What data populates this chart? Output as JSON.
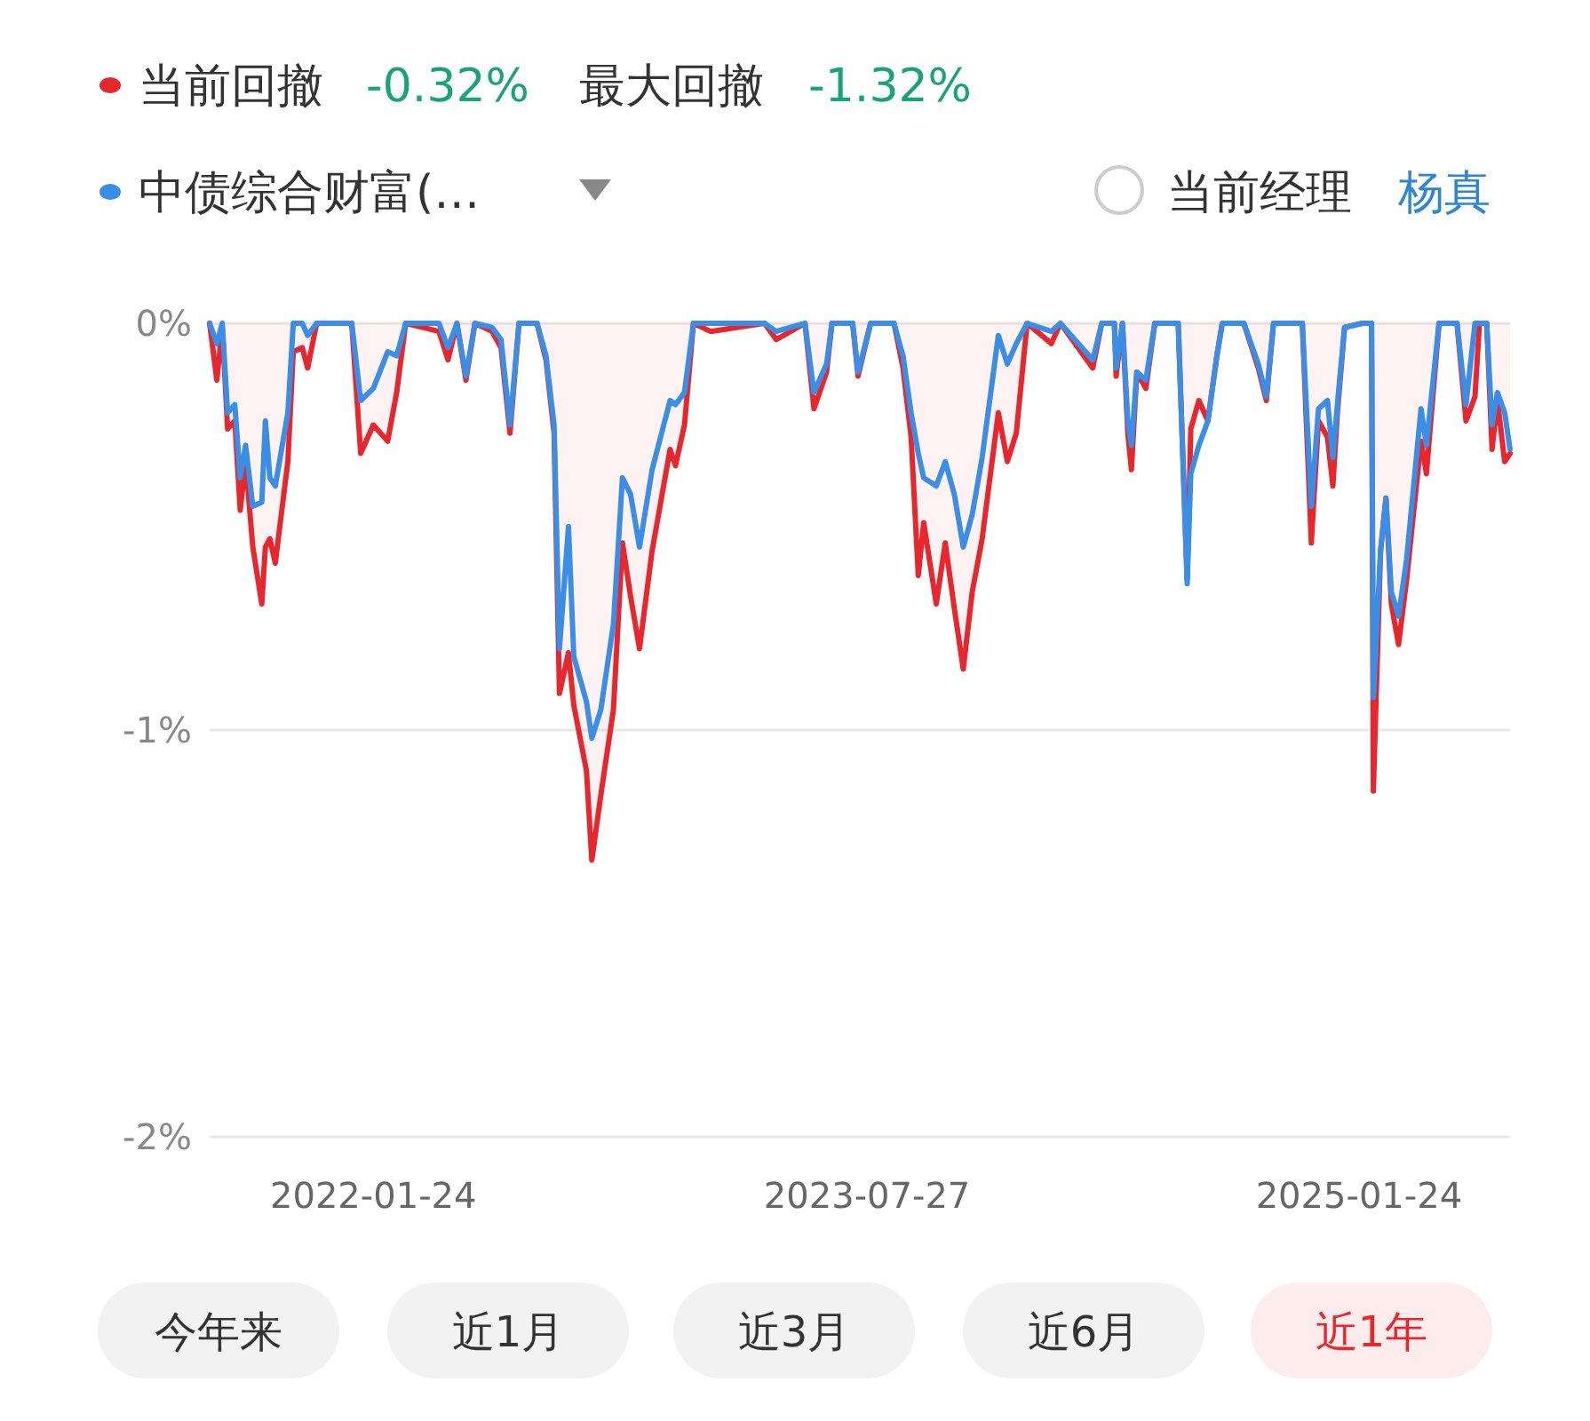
{
  "chart_data": {
    "type": "line",
    "x": [
      "2021-07-26",
      "2021-08-03",
      "2021-08-09",
      "2021-08-15",
      "2021-08-23",
      "2021-08-29",
      "2021-09-04",
      "2021-09-12",
      "2021-09-22",
      "2021-09-26",
      "2021-10-01",
      "2021-10-07",
      "2021-10-21",
      "2021-10-27",
      "2021-11-06",
      "2021-11-12",
      "2021-11-22",
      "2021-12-31",
      "2022-01-10",
      "2022-01-24",
      "2022-02-09",
      "2022-02-19",
      "2022-03-01",
      "2022-04-07",
      "2022-04-17",
      "2022-04-27",
      "2022-05-07",
      "2022-05-17",
      "2022-06-05",
      "2022-06-15",
      "2022-06-25",
      "2022-07-05",
      "2022-07-25",
      "2022-08-04",
      "2022-08-13",
      "2022-08-19",
      "2022-08-29",
      "2022-09-04",
      "2022-09-18",
      "2022-09-24",
      "2022-10-04",
      "2022-10-18",
      "2022-10-28",
      "2022-11-06",
      "2022-11-16",
      "2022-11-30",
      "2022-12-20",
      "2022-12-26",
      "2023-01-05",
      "2023-01-15",
      "2023-02-03",
      "2023-04-04",
      "2023-04-17",
      "2023-05-19",
      "2023-05-29",
      "2023-06-12",
      "2023-06-18",
      "2023-07-11",
      "2023-07-17",
      "2023-07-31",
      "2023-08-26",
      "2023-09-05",
      "2023-09-14",
      "2023-09-22",
      "2023-09-28",
      "2023-10-12",
      "2023-10-22",
      "2023-11-01",
      "2023-11-11",
      "2023-11-21",
      "2023-12-02",
      "2023-12-20",
      "2023-12-30",
      "2024-01-09",
      "2024-01-21",
      "2024-02-17",
      "2024-02-27",
      "2024-04-03",
      "2024-04-13",
      "2024-04-27",
      "2024-04-29",
      "2024-05-06",
      "2024-05-12",
      "2024-05-16",
      "2024-05-22",
      "2024-06-01",
      "2024-06-11",
      "2024-07-07",
      "2024-07-17",
      "2024-07-21",
      "2024-07-30",
      "2024-08-09",
      "2024-08-19",
      "2024-08-25",
      "2024-09-18",
      "2024-10-04",
      "2024-10-13",
      "2024-10-21",
      "2024-11-22",
      "2024-12-02",
      "2024-12-10",
      "2024-12-20",
      "2024-12-26",
      "2024-12-31",
      "2025-01-08",
      "2025-01-28",
      "2025-02-07",
      "2025-02-09",
      "2025-02-17",
      "2025-02-23",
      "2025-03-01",
      "2025-03-09",
      "2025-03-18",
      "2025-04-03",
      "2025-04-09",
      "2025-04-23",
      "2025-05-13",
      "2025-05-23",
      "2025-06-02",
      "2025-06-07",
      "2025-06-15",
      "2025-06-21",
      "2025-06-27",
      "2025-07-05",
      "2025-07-11"
    ],
    "series": [
      {
        "name": "当前回撤",
        "type": "area",
        "color": "#e8262d",
        "values": [
          0,
          -0.14,
          -0.01,
          -0.26,
          -0.24,
          -0.46,
          -0.34,
          -0.55,
          -0.69,
          -0.55,
          -0.53,
          -0.59,
          -0.34,
          -0.07,
          -0.06,
          -0.11,
          0,
          0,
          -0.32,
          -0.25,
          -0.29,
          -0.17,
          0,
          -0.02,
          -0.09,
          0,
          -0.14,
          0,
          -0.02,
          -0.06,
          -0.27,
          0,
          0,
          -0.09,
          -0.27,
          -0.91,
          -0.81,
          -0.94,
          -1.1,
          -1.32,
          -1.16,
          -0.95,
          -0.54,
          -0.67,
          -0.8,
          -0.56,
          -0.31,
          -0.35,
          -0.25,
          0,
          -0.02,
          0,
          -0.04,
          0,
          -0.21,
          -0.12,
          0,
          0,
          -0.13,
          0,
          0,
          -0.11,
          -0.28,
          -0.62,
          -0.49,
          -0.69,
          -0.54,
          -0.7,
          -0.85,
          -0.66,
          -0.53,
          -0.22,
          -0.34,
          -0.27,
          0,
          -0.05,
          0,
          -0.11,
          0,
          0,
          -0.13,
          0,
          -0.27,
          -0.36,
          -0.12,
          -0.16,
          0,
          0,
          -0.63,
          -0.26,
          -0.19,
          -0.24,
          -0.08,
          0,
          0,
          -0.11,
          -0.19,
          0,
          0,
          -0.54,
          -0.24,
          -0.28,
          -0.4,
          -0.22,
          -0.01,
          0,
          0,
          -1.15,
          -0.56,
          -0.43,
          -0.69,
          -0.79,
          -0.63,
          -0.29,
          -0.37,
          0,
          0,
          -0.24,
          -0.18,
          0,
          0,
          -0.31,
          -0.19,
          -0.34,
          -0.32
        ]
      },
      {
        "name": "中债综合财富(…",
        "color": "#3a8ee6",
        "values": [
          0,
          -0.05,
          0,
          -0.22,
          -0.2,
          -0.38,
          -0.3,
          -0.45,
          -0.44,
          -0.24,
          -0.38,
          -0.4,
          -0.22,
          0,
          0,
          -0.03,
          0,
          0,
          -0.19,
          -0.16,
          -0.07,
          -0.08,
          0,
          0,
          -0.06,
          0,
          -0.13,
          0,
          -0.01,
          -0.04,
          -0.25,
          0,
          0,
          -0.08,
          -0.25,
          -0.8,
          -0.5,
          -0.82,
          -0.93,
          -1.02,
          -0.95,
          -0.74,
          -0.38,
          -0.42,
          -0.55,
          -0.36,
          -0.19,
          -0.2,
          -0.17,
          0,
          0,
          0,
          -0.02,
          0,
          -0.17,
          -0.1,
          0,
          0,
          -0.12,
          0,
          0,
          -0.08,
          -0.22,
          -0.32,
          -0.38,
          -0.4,
          -0.34,
          -0.42,
          -0.55,
          -0.47,
          -0.33,
          -0.03,
          -0.1,
          -0.05,
          0,
          -0.02,
          0,
          -0.09,
          0,
          0,
          -0.11,
          0,
          -0.24,
          -0.3,
          -0.12,
          -0.14,
          0,
          0,
          -0.64,
          -0.37,
          -0.3,
          -0.24,
          -0.08,
          0,
          0,
          -0.1,
          -0.18,
          0,
          0,
          -0.45,
          -0.21,
          -0.19,
          -0.33,
          -0.2,
          -0.01,
          0,
          0,
          -0.92,
          -0.56,
          -0.43,
          -0.66,
          -0.72,
          -0.58,
          -0.21,
          -0.3,
          0,
          0,
          -0.2,
          0,
          0,
          0,
          -0.25,
          -0.17,
          -0.22,
          -0.31
        ]
      }
    ],
    "xlim": [
      "2021-07-26",
      "2025-07-11"
    ],
    "xticks": [
      {
        "value": "2022-01-24",
        "label": "2022-01-24"
      },
      {
        "value": "2023-07-27",
        "label": "2023-07-27"
      },
      {
        "value": "2025-01-24",
        "label": "2025-01-24"
      }
    ],
    "ylim": [
      -2,
      0
    ],
    "yticks": [
      {
        "value": 0,
        "label": "0%"
      },
      {
        "value": -1,
        "label": "-1%"
      },
      {
        "value": -2,
        "label": "-2%"
      }
    ],
    "grid": "y",
    "legend": "top left",
    "annotations": [
      "-0.32%",
      "最大回撤",
      "-1.32%",
      "当前经理",
      "杨真",
      "今年来",
      "近1月",
      "近3月",
      "近6月",
      "近1年"
    ]
  }
}
